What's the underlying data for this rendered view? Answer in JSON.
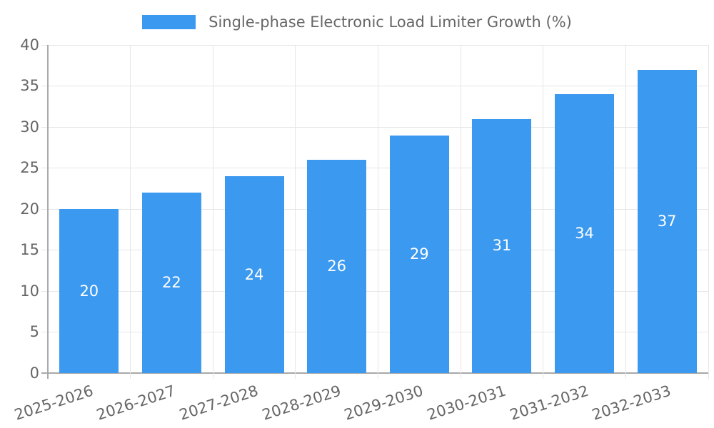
{
  "chart_data": {
    "type": "bar",
    "title": "Single-phase Electronic Load Limiter Growth (%)",
    "categories": [
      "2025-2026",
      "2026-2027",
      "2027-2028",
      "2028-2029",
      "2029-2030",
      "2030-2031",
      "2031-2032",
      "2032-2033"
    ],
    "values": [
      20,
      22,
      24,
      26,
      29,
      31,
      34,
      37
    ],
    "xlabel": "",
    "ylabel": "",
    "ylim": [
      0,
      40
    ],
    "ytick_step": 5,
    "yticks": [
      0,
      5,
      10,
      15,
      20,
      25,
      30,
      35,
      40
    ],
    "grid": true,
    "legend_position": "top",
    "value_labels_position": "inside-center",
    "x_label_rotation_deg": -18
  },
  "colors": {
    "bar": "#3b99f0",
    "grid_line": "#e6e6e6",
    "axis_line": "#a9a9a9",
    "tick_text": "#666666",
    "value_label_text": "#ffffff",
    "background": "#ffffff"
  }
}
